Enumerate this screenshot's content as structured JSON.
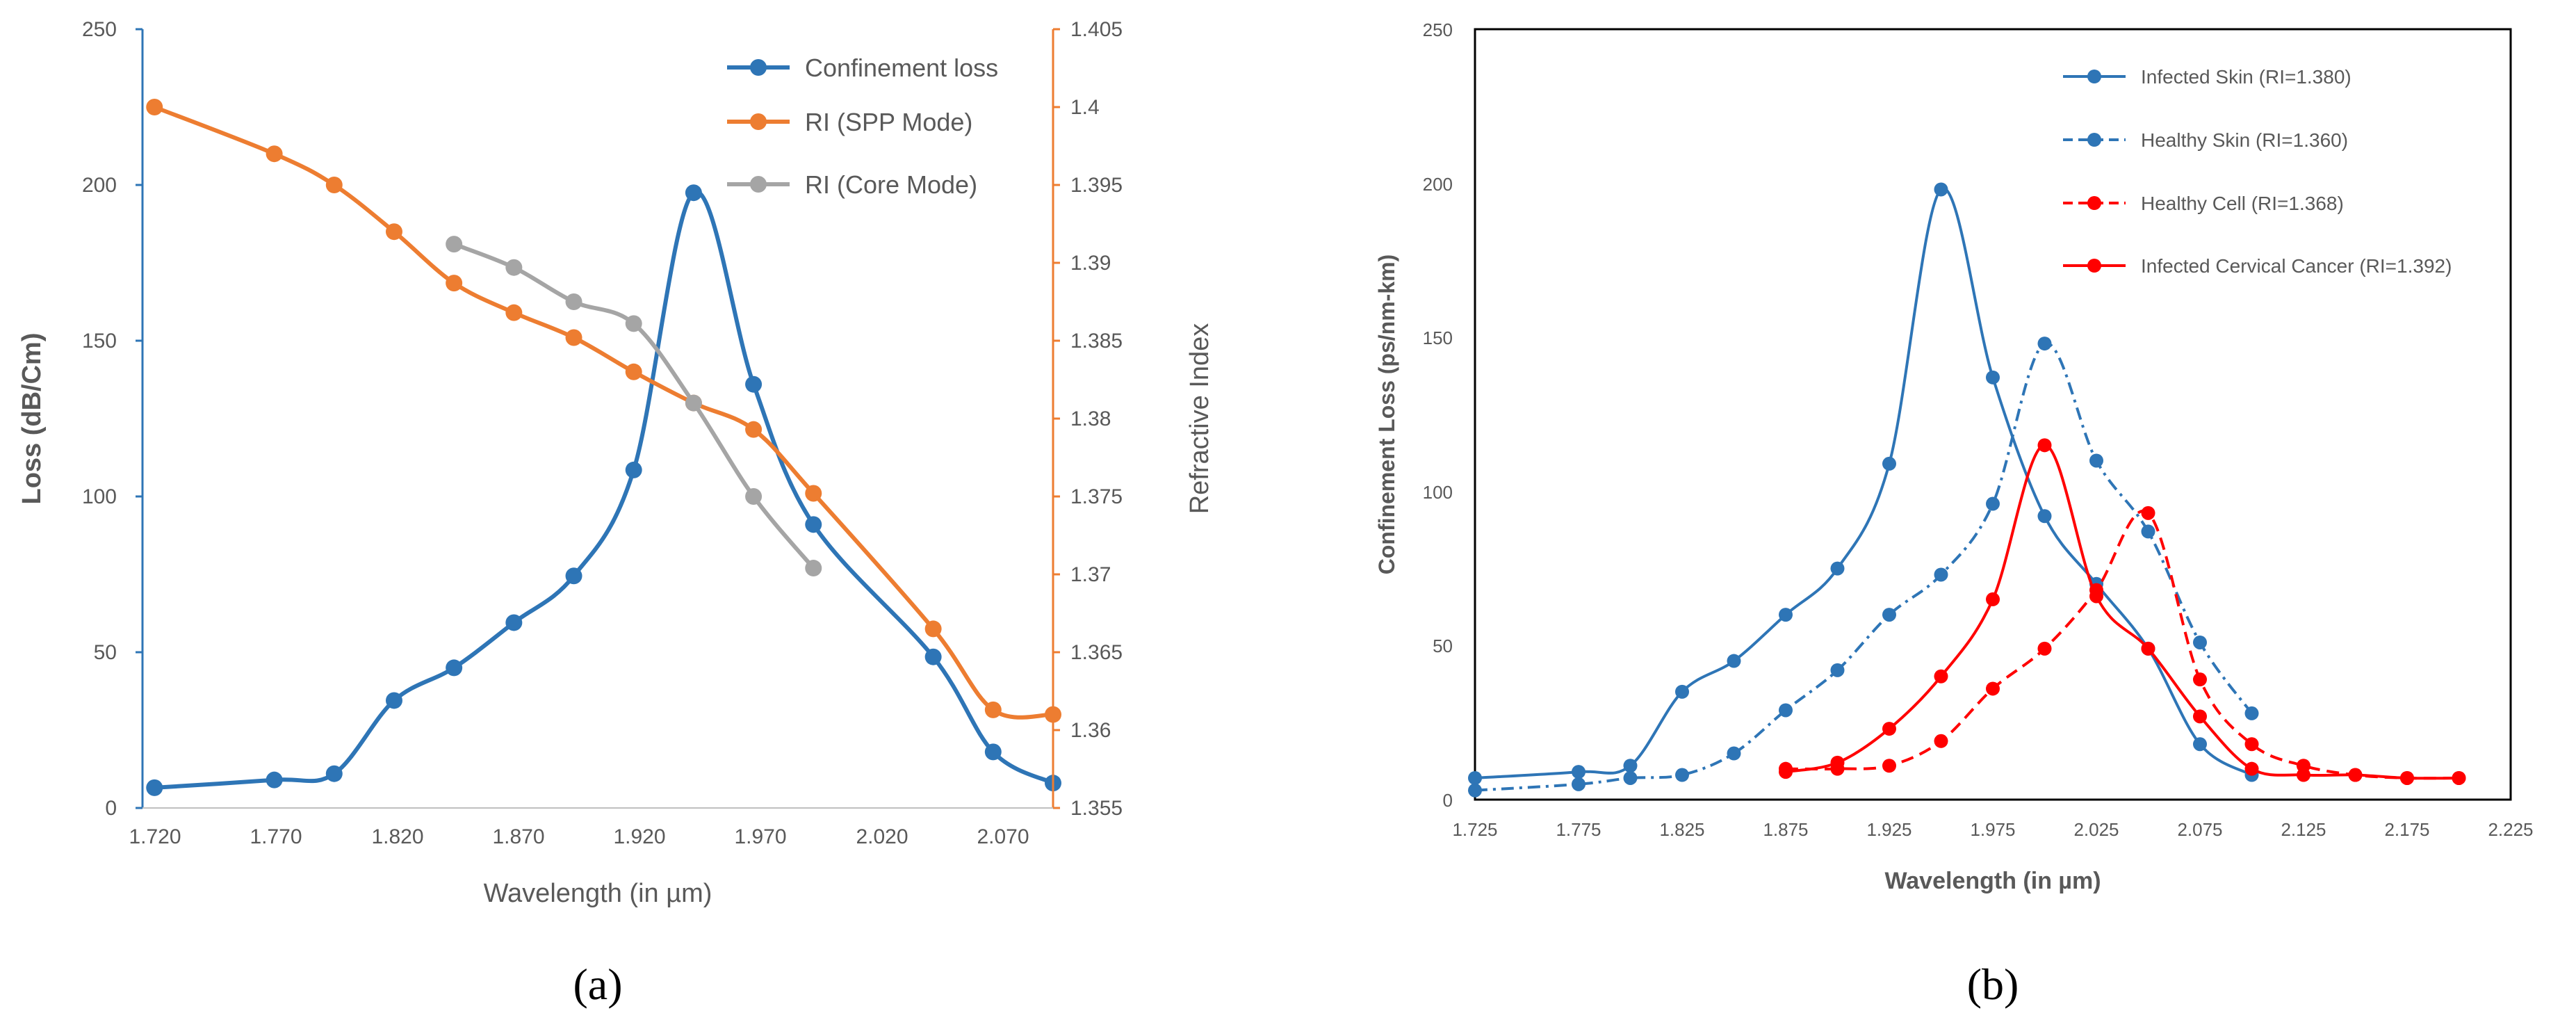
{
  "chart_data": [
    {
      "panel_label": "(a)",
      "type": "line",
      "xlabel": "Wavelength (in µm)",
      "ylabel": "Loss (dB/Cm)",
      "y2label": "Refractive Index",
      "xlim": [
        1.72,
        2.1
      ],
      "ylim": [
        0,
        250
      ],
      "y2lim": [
        1.355,
        1.405
      ],
      "grid": false,
      "legend": "top-right",
      "xticks": [
        "1.720",
        "1.770",
        "1.820",
        "1.870",
        "1.920",
        "1.970",
        "2.020",
        "2.070"
      ],
      "yticks": [
        "0",
        "50",
        "100",
        "150",
        "200",
        "250"
      ],
      "y2ticks": [
        "1.355",
        "1.36",
        "1.365",
        "1.37",
        "1.375",
        "1.38",
        "1.385",
        "1.39",
        "1.395",
        "1.4",
        "1.405"
      ],
      "series": [
        {
          "name": "Confinement loss",
          "axis": "left",
          "color": "#2e75b6",
          "x": [
            1.725,
            1.775,
            1.8,
            1.825,
            1.85,
            1.875,
            1.9,
            1.925,
            1.95,
            1.975,
            2.0,
            2.05,
            2.075,
            2.1
          ],
          "values": [
            6.5,
            9,
            11,
            34.5,
            45,
            59.5,
            74.5,
            108.5,
            197.5,
            136,
            91,
            48.5,
            18,
            8
          ]
        },
        {
          "name": "RI (SPP Mode)",
          "axis": "right",
          "color": "#ed7d31",
          "x": [
            1.725,
            1.775,
            1.8,
            1.825,
            1.85,
            1.875,
            1.9,
            1.925,
            1.95,
            1.975,
            2.0,
            2.05,
            2.075,
            2.1
          ],
          "values": [
            1.4,
            1.397,
            1.395,
            1.392,
            1.3887,
            1.3868,
            1.3852,
            1.383,
            1.381,
            1.3793,
            1.3752,
            1.3665,
            1.3613,
            1.361
          ]
        },
        {
          "name": "RI (Core Mode)",
          "axis": "right",
          "color": "#a5a5a5",
          "x": [
            1.85,
            1.875,
            1.9,
            1.925,
            1.95,
            1.975,
            2.0
          ],
          "values": [
            1.3912,
            1.3897,
            1.3875,
            1.3861,
            1.381,
            1.375,
            1.3704
          ]
        }
      ]
    },
    {
      "panel_label": "(b)",
      "type": "line",
      "xlabel": "Wavelength (in µm)",
      "ylabel": "Confinement Loss (ps/nm-km)",
      "xlim": [
        1.725,
        2.225
      ],
      "ylim": [
        0,
        250
      ],
      "grid": false,
      "legend": "top-right",
      "xticks": [
        "1.725",
        "1.775",
        "1.825",
        "1.875",
        "1.925",
        "1.975",
        "2.025",
        "2.075",
        "2.125",
        "2.175",
        "2.225"
      ],
      "yticks": [
        "0",
        "50",
        "100",
        "150",
        "200",
        "250"
      ],
      "series": [
        {
          "name": "Infected Skin (RI=1.380)",
          "color": "#2e75b6",
          "dash": "solid",
          "x": [
            1.725,
            1.775,
            1.8,
            1.825,
            1.85,
            1.875,
            1.9,
            1.925,
            1.95,
            1.975,
            2.0,
            2.025,
            2.05,
            2.075,
            2.1
          ],
          "values": [
            7,
            9,
            11,
            35,
            45,
            60,
            75,
            109,
            198,
            137,
            92,
            70,
            49,
            18,
            8
          ]
        },
        {
          "name": "Healthy Skin (RI=1.360)",
          "color": "#2e75b6",
          "dash": "dashdot",
          "x": [
            1.725,
            1.775,
            1.8,
            1.825,
            1.85,
            1.875,
            1.9,
            1.925,
            1.95,
            1.975,
            2.0,
            2.025,
            2.05,
            2.075,
            2.1
          ],
          "values": [
            3,
            5,
            7,
            8,
            15,
            29,
            42,
            60,
            73,
            96,
            148,
            110,
            87,
            51,
            28
          ]
        },
        {
          "name": "Healthy Cell (RI=1.368)",
          "color": "#ff0000",
          "dash": "dashed",
          "x": [
            1.875,
            1.9,
            1.925,
            1.95,
            1.975,
            2.0,
            2.025,
            2.05,
            2.075,
            2.1,
            2.125,
            2.15,
            2.175,
            2.2
          ],
          "values": [
            10,
            10,
            11,
            19,
            36,
            49,
            68,
            93,
            39,
            18,
            11,
            8,
            7,
            7
          ]
        },
        {
          "name": "Infected Cervical Cancer (RI=1.392)",
          "color": "#ff0000",
          "dash": "solid",
          "x": [
            1.875,
            1.9,
            1.925,
            1.95,
            1.975,
            2.0,
            2.025,
            2.05,
            2.075,
            2.1,
            2.125,
            2.15,
            2.175,
            2.2
          ],
          "values": [
            9,
            12,
            23,
            40,
            65,
            115,
            66,
            49,
            27,
            10,
            8,
            8,
            7,
            7
          ]
        }
      ]
    }
  ]
}
